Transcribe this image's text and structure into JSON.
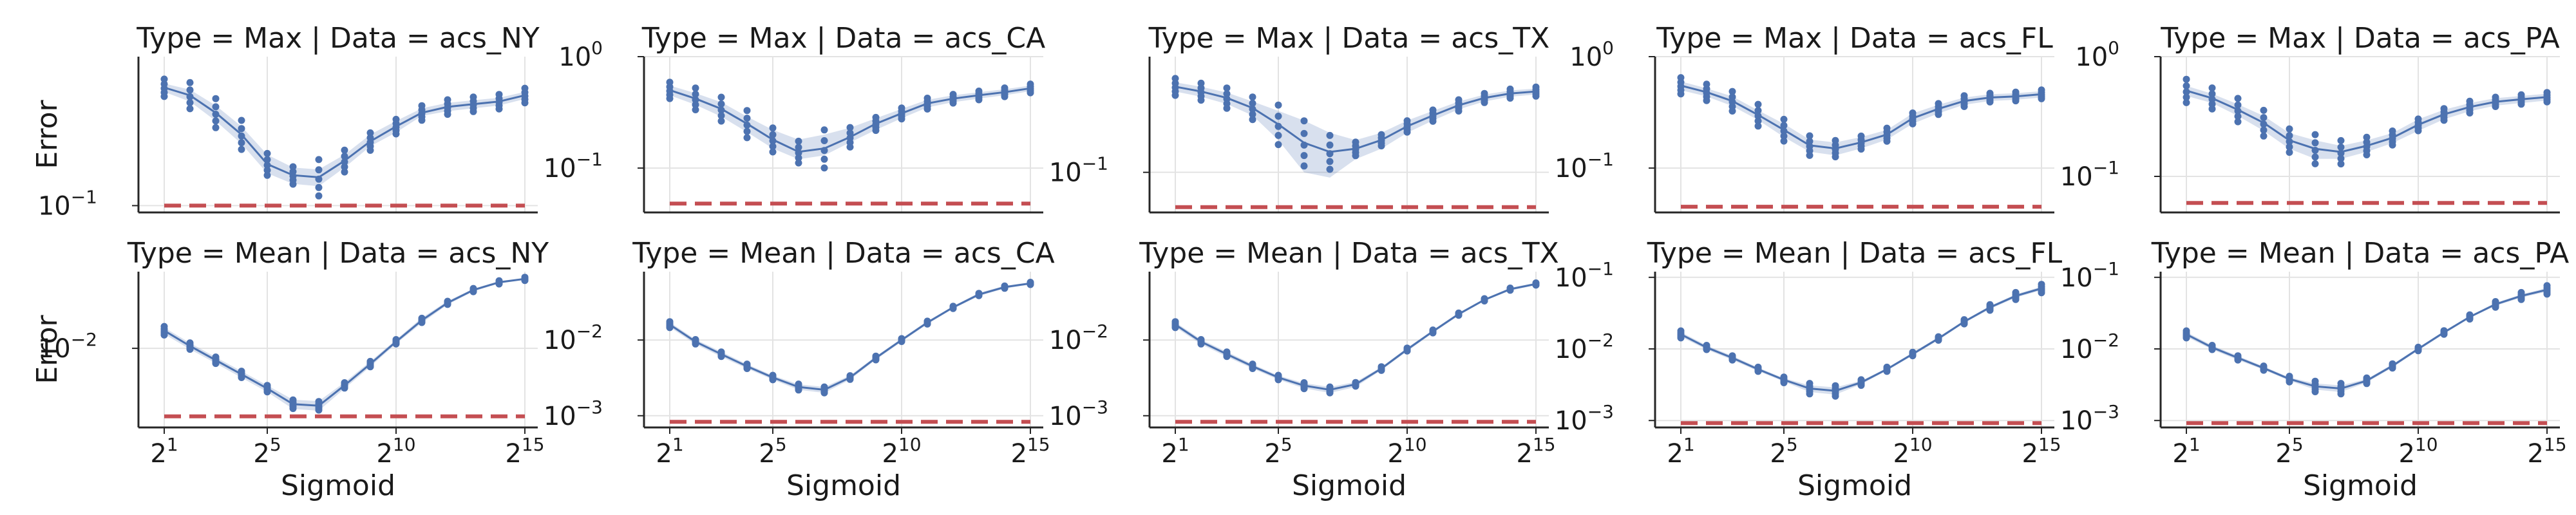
{
  "colors": {
    "series": "#4c72b0",
    "band": "#4c72b0",
    "baseline": "#c44e52"
  },
  "chart_data": {
    "type": "scatter",
    "facets": {
      "row_variable": "Type",
      "col_variable": "Data",
      "row_values": [
        "Max",
        "Mean"
      ],
      "col_values": [
        "acs_NY",
        "acs_CA",
        "acs_TX",
        "acs_FL",
        "acs_PA"
      ]
    },
    "x_axis": {
      "label": "Sigmoid",
      "scale": "log2",
      "lim_exp": [
        0,
        15.5
      ],
      "ticks": [
        {
          "base": "2",
          "exp": "1",
          "value_exp": 1
        },
        {
          "base": "2",
          "exp": "5",
          "value_exp": 5
        },
        {
          "base": "2",
          "exp": "10",
          "value_exp": 10
        },
        {
          "base": "2",
          "exp": "15",
          "value_exp": 15
        }
      ]
    },
    "y_axis_label": "Error",
    "panels": [
      {
        "title": "Type = Max | Data = acs_NY",
        "row": 0,
        "col": 0,
        "ylim": [
          0.09,
          1.0
        ],
        "yticks": [
          {
            "base": "10",
            "exp": "−1",
            "value": 0.1
          }
        ],
        "x_exp": [
          1,
          2,
          3,
          4,
          5,
          6,
          7,
          8,
          9,
          10,
          11,
          12,
          13,
          14,
          15
        ],
        "mean": [
          0.62,
          0.55,
          0.42,
          0.3,
          0.19,
          0.16,
          0.155,
          0.2,
          0.27,
          0.34,
          0.42,
          0.46,
          0.48,
          0.5,
          0.55
        ],
        "lower": [
          0.58,
          0.5,
          0.37,
          0.26,
          0.165,
          0.14,
          0.135,
          0.18,
          0.25,
          0.31,
          0.4,
          0.43,
          0.45,
          0.47,
          0.52
        ],
        "upper": [
          0.66,
          0.6,
          0.47,
          0.34,
          0.22,
          0.18,
          0.175,
          0.22,
          0.3,
          0.37,
          0.45,
          0.49,
          0.51,
          0.53,
          0.58
        ],
        "spread": [
          0.12,
          0.18,
          0.2,
          0.2,
          0.15,
          0.12,
          0.25,
          0.15,
          0.12,
          0.1,
          0.1,
          0.1,
          0.1,
          0.1,
          0.1
        ],
        "baseline": 0.1
      },
      {
        "title": "Type = Max | Data = acs_CA",
        "row": 0,
        "col": 1,
        "ylim": [
          0.04,
          1.0
        ],
        "yticks": [
          {
            "base": "10",
            "exp": "−1",
            "value": 0.1
          },
          {
            "base": "10",
            "exp": "0",
            "value": 1.0
          }
        ],
        "x_exp": [
          1,
          2,
          3,
          4,
          5,
          6,
          7,
          8,
          9,
          10,
          11,
          12,
          13,
          14,
          15
        ],
        "mean": [
          0.5,
          0.42,
          0.34,
          0.25,
          0.18,
          0.14,
          0.15,
          0.19,
          0.25,
          0.31,
          0.38,
          0.42,
          0.45,
          0.48,
          0.52
        ],
        "lower": [
          0.45,
          0.37,
          0.29,
          0.21,
          0.15,
          0.12,
          0.13,
          0.17,
          0.22,
          0.28,
          0.35,
          0.39,
          0.42,
          0.45,
          0.49
        ],
        "upper": [
          0.55,
          0.47,
          0.39,
          0.29,
          0.22,
          0.18,
          0.2,
          0.23,
          0.28,
          0.34,
          0.41,
          0.45,
          0.48,
          0.51,
          0.55
        ],
        "spread": [
          0.15,
          0.2,
          0.22,
          0.25,
          0.22,
          0.2,
          0.35,
          0.18,
          0.12,
          0.1,
          0.1,
          0.08,
          0.08,
          0.08,
          0.08
        ],
        "baseline": 0.048
      },
      {
        "title": "Type = Max | Data = acs_TX",
        "row": 0,
        "col": 2,
        "ylim": [
          0.045,
          1.0
        ],
        "yticks": [
          {
            "base": "10",
            "exp": "−1",
            "value": 0.1
          }
        ],
        "x_exp": [
          1,
          2,
          3,
          4,
          5,
          6,
          7,
          8,
          9,
          10,
          11,
          12,
          13,
          14,
          15
        ],
        "mean": [
          0.55,
          0.5,
          0.44,
          0.36,
          0.26,
          0.18,
          0.15,
          0.16,
          0.19,
          0.25,
          0.31,
          0.38,
          0.44,
          0.48,
          0.5
        ],
        "lower": [
          0.5,
          0.45,
          0.39,
          0.31,
          0.19,
          0.1,
          0.09,
          0.13,
          0.16,
          0.22,
          0.28,
          0.35,
          0.41,
          0.45,
          0.47
        ],
        "upper": [
          0.6,
          0.55,
          0.49,
          0.41,
          0.34,
          0.28,
          0.22,
          0.19,
          0.22,
          0.28,
          0.34,
          0.41,
          0.47,
          0.51,
          0.53
        ],
        "spread": [
          0.15,
          0.15,
          0.18,
          0.2,
          0.35,
          0.4,
          0.3,
          0.12,
          0.1,
          0.1,
          0.1,
          0.1,
          0.08,
          0.08,
          0.08
        ],
        "baseline": 0.05
      },
      {
        "title": "Type = Max | Data = acs_FL",
        "row": 0,
        "col": 3,
        "ylim": [
          0.04,
          1.0
        ],
        "yticks": [
          {
            "base": "10",
            "exp": "−1",
            "value": 0.1
          },
          {
            "base": "10",
            "exp": "0",
            "value": 1.0
          }
        ],
        "x_exp": [
          1,
          2,
          3,
          4,
          5,
          6,
          7,
          8,
          9,
          10,
          11,
          12,
          13,
          14,
          15
        ],
        "mean": [
          0.55,
          0.48,
          0.4,
          0.3,
          0.22,
          0.16,
          0.15,
          0.17,
          0.2,
          0.28,
          0.34,
          0.4,
          0.43,
          0.44,
          0.46
        ],
        "lower": [
          0.5,
          0.44,
          0.36,
          0.27,
          0.19,
          0.14,
          0.13,
          0.15,
          0.18,
          0.25,
          0.31,
          0.37,
          0.4,
          0.41,
          0.43
        ],
        "upper": [
          0.6,
          0.52,
          0.44,
          0.33,
          0.25,
          0.18,
          0.17,
          0.19,
          0.22,
          0.31,
          0.37,
          0.43,
          0.46,
          0.47,
          0.49
        ],
        "spread": [
          0.15,
          0.15,
          0.18,
          0.2,
          0.2,
          0.18,
          0.15,
          0.12,
          0.12,
          0.1,
          0.1,
          0.1,
          0.08,
          0.08,
          0.08
        ],
        "baseline": 0.045
      },
      {
        "title": "Type = Max | Data = acs_PA",
        "row": 0,
        "col": 4,
        "ylim": [
          0.05,
          1.0
        ],
        "yticks": [
          {
            "base": "10",
            "exp": "−1",
            "value": 0.1
          },
          {
            "base": "10",
            "exp": "0",
            "value": 1.0
          }
        ],
        "x_exp": [
          1,
          2,
          3,
          4,
          5,
          6,
          7,
          8,
          9,
          10,
          11,
          12,
          13,
          14,
          15
        ],
        "mean": [
          0.52,
          0.45,
          0.36,
          0.28,
          0.2,
          0.17,
          0.16,
          0.18,
          0.21,
          0.27,
          0.33,
          0.38,
          0.42,
          0.44,
          0.46
        ],
        "lower": [
          0.47,
          0.41,
          0.32,
          0.24,
          0.17,
          0.14,
          0.14,
          0.16,
          0.19,
          0.24,
          0.3,
          0.35,
          0.39,
          0.41,
          0.43
        ],
        "upper": [
          0.57,
          0.49,
          0.4,
          0.32,
          0.23,
          0.2,
          0.18,
          0.2,
          0.23,
          0.3,
          0.36,
          0.41,
          0.45,
          0.47,
          0.49
        ],
        "spread": [
          0.2,
          0.18,
          0.2,
          0.22,
          0.2,
          0.25,
          0.2,
          0.15,
          0.12,
          0.1,
          0.1,
          0.1,
          0.08,
          0.08,
          0.08
        ],
        "baseline": 0.06
      },
      {
        "title": "Type = Mean | Data = acs_NY",
        "row": 1,
        "col": 0,
        "ylim": [
          0.0019,
          0.05
        ],
        "yticks": [
          {
            "base": "10",
            "exp": "−2",
            "value": 0.01
          }
        ],
        "x_exp": [
          1,
          2,
          3,
          4,
          5,
          6,
          7,
          8,
          9,
          10,
          11,
          12,
          13,
          14,
          15
        ],
        "mean": [
          0.0145,
          0.0105,
          0.0078,
          0.0058,
          0.0043,
          0.0031,
          0.003,
          0.0046,
          0.0072,
          0.0115,
          0.018,
          0.026,
          0.034,
          0.04,
          0.043
        ],
        "lower": [
          0.0135,
          0.0098,
          0.0073,
          0.0054,
          0.004,
          0.0028,
          0.0027,
          0.0043,
          0.0068,
          0.011,
          0.017,
          0.025,
          0.033,
          0.039,
          0.042
        ],
        "upper": [
          0.0155,
          0.0112,
          0.0083,
          0.0062,
          0.0046,
          0.0034,
          0.0033,
          0.0049,
          0.0076,
          0.012,
          0.019,
          0.027,
          0.035,
          0.041,
          0.044
        ],
        "spread": [
          0.08,
          0.06,
          0.06,
          0.06,
          0.06,
          0.08,
          0.08,
          0.05,
          0.05,
          0.04,
          0.04,
          0.03,
          0.03,
          0.03,
          0.03
        ],
        "baseline": 0.0024
      },
      {
        "title": "Type = Mean | Data = acs_CA",
        "row": 1,
        "col": 1,
        "ylim": [
          0.0007,
          0.08
        ],
        "yticks": [
          {
            "base": "10",
            "exp": "−3",
            "value": 0.001
          },
          {
            "base": "10",
            "exp": "−2",
            "value": 0.01
          }
        ],
        "x_exp": [
          1,
          2,
          3,
          4,
          5,
          6,
          7,
          8,
          9,
          10,
          11,
          12,
          13,
          14,
          15
        ],
        "mean": [
          0.016,
          0.0095,
          0.0065,
          0.0045,
          0.0032,
          0.0024,
          0.0022,
          0.0032,
          0.0058,
          0.01,
          0.017,
          0.027,
          0.04,
          0.05,
          0.056
        ],
        "lower": [
          0.0148,
          0.0088,
          0.006,
          0.0042,
          0.003,
          0.0022,
          0.002,
          0.003,
          0.0055,
          0.0095,
          0.0162,
          0.026,
          0.038,
          0.048,
          0.054
        ],
        "upper": [
          0.0172,
          0.0102,
          0.007,
          0.0048,
          0.0034,
          0.0026,
          0.0024,
          0.0034,
          0.0061,
          0.0105,
          0.0178,
          0.028,
          0.042,
          0.052,
          0.058
        ],
        "spread": [
          0.08,
          0.06,
          0.06,
          0.06,
          0.06,
          0.08,
          0.08,
          0.05,
          0.05,
          0.04,
          0.04,
          0.03,
          0.03,
          0.03,
          0.03
        ],
        "baseline": 0.00083
      },
      {
        "title": "Type = Mean | Data = acs_TX",
        "row": 1,
        "col": 2,
        "ylim": [
          0.0007,
          0.08
        ],
        "yticks": [
          {
            "base": "10",
            "exp": "−3",
            "value": 0.001
          },
          {
            "base": "10",
            "exp": "−2",
            "value": 0.01
          }
        ],
        "x_exp": [
          1,
          2,
          3,
          4,
          5,
          6,
          7,
          8,
          9,
          10,
          11,
          12,
          13,
          14,
          15
        ],
        "mean": [
          0.016,
          0.0095,
          0.0065,
          0.0045,
          0.0032,
          0.0025,
          0.0022,
          0.0026,
          0.0042,
          0.0075,
          0.013,
          0.022,
          0.034,
          0.047,
          0.055
        ],
        "lower": [
          0.0148,
          0.0088,
          0.006,
          0.0042,
          0.003,
          0.0023,
          0.002,
          0.0024,
          0.004,
          0.0071,
          0.0124,
          0.021,
          0.033,
          0.045,
          0.053
        ],
        "upper": [
          0.0172,
          0.0102,
          0.007,
          0.0048,
          0.0034,
          0.0027,
          0.0024,
          0.0028,
          0.0044,
          0.0079,
          0.0136,
          0.023,
          0.035,
          0.049,
          0.057
        ],
        "spread": [
          0.08,
          0.06,
          0.06,
          0.06,
          0.06,
          0.08,
          0.08,
          0.05,
          0.05,
          0.04,
          0.04,
          0.03,
          0.03,
          0.03,
          0.03
        ],
        "baseline": 0.00083
      },
      {
        "title": "Type = Mean | Data = acs_FL",
        "row": 1,
        "col": 3,
        "ylim": [
          0.0008,
          0.12
        ],
        "yticks": [
          {
            "base": "10",
            "exp": "−3",
            "value": 0.001
          },
          {
            "base": "10",
            "exp": "−2",
            "value": 0.01
          },
          {
            "base": "10",
            "exp": "−1",
            "value": 0.1
          }
        ],
        "x_exp": [
          1,
          2,
          3,
          4,
          5,
          6,
          7,
          8,
          9,
          10,
          11,
          12,
          13,
          14,
          15
        ],
        "mean": [
          0.016,
          0.0105,
          0.0075,
          0.0052,
          0.0037,
          0.0028,
          0.0026,
          0.0034,
          0.0052,
          0.0085,
          0.014,
          0.024,
          0.038,
          0.055,
          0.07
        ],
        "lower": [
          0.0148,
          0.0098,
          0.007,
          0.0049,
          0.0035,
          0.0025,
          0.0023,
          0.0032,
          0.005,
          0.0081,
          0.0133,
          0.023,
          0.036,
          0.052,
          0.066
        ],
        "upper": [
          0.0172,
          0.0112,
          0.008,
          0.0055,
          0.0039,
          0.0031,
          0.0029,
          0.0036,
          0.0054,
          0.0089,
          0.0147,
          0.025,
          0.04,
          0.058,
          0.074
        ],
        "spread": [
          0.1,
          0.06,
          0.06,
          0.06,
          0.08,
          0.15,
          0.15,
          0.08,
          0.06,
          0.05,
          0.05,
          0.06,
          0.08,
          0.1,
          0.12
        ],
        "baseline": 0.00092
      },
      {
        "title": "Type = Mean | Data = acs_PA",
        "row": 1,
        "col": 4,
        "ylim": [
          0.0008,
          0.12
        ],
        "yticks": [
          {
            "base": "10",
            "exp": "−3",
            "value": 0.001
          },
          {
            "base": "10",
            "exp": "−2",
            "value": 0.01
          },
          {
            "base": "10",
            "exp": "−1",
            "value": 0.1
          }
        ],
        "x_exp": [
          1,
          2,
          3,
          4,
          5,
          6,
          7,
          8,
          9,
          10,
          11,
          12,
          13,
          14,
          15
        ],
        "mean": [
          0.016,
          0.0105,
          0.0075,
          0.0054,
          0.0038,
          0.003,
          0.0028,
          0.0036,
          0.0058,
          0.01,
          0.017,
          0.028,
          0.042,
          0.055,
          0.067
        ],
        "lower": [
          0.0148,
          0.0098,
          0.007,
          0.0051,
          0.0036,
          0.0027,
          0.0025,
          0.0034,
          0.0055,
          0.0095,
          0.0162,
          0.027,
          0.04,
          0.052,
          0.063
        ],
        "upper": [
          0.0172,
          0.0112,
          0.008,
          0.0057,
          0.004,
          0.0033,
          0.0031,
          0.0038,
          0.0061,
          0.0105,
          0.0178,
          0.029,
          0.044,
          0.058,
          0.071
        ],
        "spread": [
          0.1,
          0.06,
          0.06,
          0.06,
          0.08,
          0.15,
          0.15,
          0.08,
          0.06,
          0.05,
          0.05,
          0.06,
          0.08,
          0.1,
          0.12
        ],
        "baseline": 0.00092
      }
    ]
  }
}
